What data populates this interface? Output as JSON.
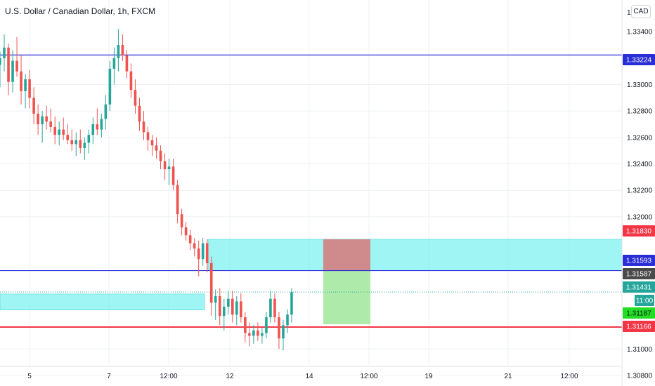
{
  "header": {
    "title": "U.S. Dollar / Canadian Dollar, 1h, FXCM"
  },
  "currency_button": {
    "label": "CAD"
  },
  "chart_data": {
    "type": "candlestick",
    "symbol": "USD/CAD",
    "interval": "1h",
    "source": "FXCM",
    "y_axis": {
      "range": [
        1.3072,
        1.3364
      ],
      "ticks": [
        1.33,
        1.328,
        1.326,
        1.324,
        1.322,
        1.32,
        1.31,
        1.308
      ],
      "tick_labels": [
        "1.33000",
        "1.32800",
        "1.32600",
        "1.32400",
        "1.32200",
        "1.32000",
        "1.31000",
        "1.30800"
      ],
      "partial_top_label": "1.3",
      "partial_second_label": "1.33400"
    },
    "x_axis": {
      "tick_labels": [
        "5",
        "7",
        "12:00",
        "12",
        "14",
        "12:00",
        "19",
        "21",
        "12:00"
      ]
    },
    "price_tags": [
      {
        "label": "1.33224",
        "value": 1.33224,
        "color": "#2a2ed6",
        "text_color": "#ffffff"
      },
      {
        "label": "1.31830",
        "value": 1.3183,
        "color": "#f23645",
        "text_color": "#ffffff"
      },
      {
        "label": "1.31593",
        "value": 1.31593,
        "color": "#2a2ed6",
        "text_color": "#ffffff"
      },
      {
        "label": "1.31587",
        "value": 1.31587,
        "color": "#4a4a4a",
        "text_color": "#ffffff"
      },
      {
        "label": "1.31431",
        "value": 1.31431,
        "color": "#26a69a",
        "text_color": "#ffffff"
      },
      {
        "label": "11:00",
        "value": 1.3132,
        "color": "#26a69a",
        "text_color": "#ffffff"
      },
      {
        "label": "1.31187",
        "value": 1.31187,
        "color": "#22dd22",
        "text_color": "#131722"
      },
      {
        "label": "1.31166",
        "value": 1.31166,
        "color": "#f23645",
        "text_color": "#ffffff"
      }
    ],
    "horizontal_lines": [
      {
        "name": "resistance",
        "value": 1.33224,
        "color": "#2a2ed6"
      },
      {
        "name": "entry",
        "value": 1.31593,
        "color": "#2a2ed6"
      },
      {
        "name": "support",
        "value": 1.31166,
        "color": "#f23645"
      }
    ],
    "current_price": {
      "value": 1.31431,
      "color": "#26a69a"
    },
    "zones": [
      {
        "name": "supply-zone",
        "from": 1.31593,
        "to": 1.3183,
        "start_time": "11:00 day 11",
        "color": "#7ff0f0"
      },
      {
        "name": "demand-zone",
        "from": 1.31295,
        "to": 1.31416,
        "color": "#7ff0f0"
      }
    ],
    "position": {
      "type": "short",
      "entry": 1.31593,
      "stop": 1.3183,
      "target": 1.31187,
      "profit_color": "#a5e8a0",
      "loss_color": "#d47f7f"
    },
    "colors": {
      "up": "#26a69a",
      "down": "#ef5350"
    },
    "grid": true,
    "candles": [
      [
        1.3315,
        1.3325,
        1.3298,
        1.332
      ],
      [
        1.332,
        1.3338,
        1.331,
        1.3328
      ],
      [
        1.3328,
        1.3331,
        1.3292,
        1.3302
      ],
      [
        1.3302,
        1.3326,
        1.3294,
        1.3318
      ],
      [
        1.3318,
        1.3336,
        1.3306,
        1.331
      ],
      [
        1.331,
        1.3322,
        1.3285,
        1.3295
      ],
      [
        1.3295,
        1.3308,
        1.3282,
        1.3304
      ],
      [
        1.3304,
        1.3311,
        1.3282,
        1.329
      ],
      [
        1.329,
        1.3298,
        1.327,
        1.3278
      ],
      [
        1.3278,
        1.3285,
        1.3262,
        1.327
      ],
      [
        1.327,
        1.328,
        1.3256,
        1.3276
      ],
      [
        1.3276,
        1.3284,
        1.3266,
        1.3272
      ],
      [
        1.3272,
        1.3282,
        1.3264,
        1.3268
      ],
      [
        1.3268,
        1.3276,
        1.3255,
        1.3262
      ],
      [
        1.3262,
        1.3272,
        1.3254,
        1.3266
      ],
      [
        1.3266,
        1.3275,
        1.3258,
        1.3262
      ],
      [
        1.3262,
        1.327,
        1.3255,
        1.3258
      ],
      [
        1.3258,
        1.3266,
        1.325,
        1.3255
      ],
      [
        1.3255,
        1.3264,
        1.3246,
        1.3258
      ],
      [
        1.3258,
        1.3266,
        1.3248,
        1.3252
      ],
      [
        1.3252,
        1.326,
        1.3243,
        1.3256
      ],
      [
        1.3256,
        1.3266,
        1.3248,
        1.3262
      ],
      [
        1.3262,
        1.3275,
        1.3255,
        1.327
      ],
      [
        1.327,
        1.3282,
        1.3262,
        1.3266
      ],
      [
        1.3266,
        1.3278,
        1.326,
        1.3274
      ],
      [
        1.3274,
        1.3292,
        1.3266,
        1.3285
      ],
      [
        1.3285,
        1.3318,
        1.328,
        1.3312
      ],
      [
        1.3312,
        1.3328,
        1.33,
        1.332
      ],
      [
        1.332,
        1.3342,
        1.331,
        1.333
      ],
      [
        1.333,
        1.3338,
        1.3318,
        1.3322
      ],
      [
        1.3322,
        1.3326,
        1.3305,
        1.331
      ],
      [
        1.331,
        1.3316,
        1.329,
        1.3296
      ],
      [
        1.3296,
        1.3304,
        1.3278,
        1.3284
      ],
      [
        1.3284,
        1.329,
        1.3265,
        1.3272
      ],
      [
        1.3272,
        1.328,
        1.3258,
        1.3264
      ],
      [
        1.3264,
        1.3268,
        1.325,
        1.3258
      ],
      [
        1.3258,
        1.3262,
        1.3246,
        1.3254
      ],
      [
        1.3254,
        1.326,
        1.3244,
        1.325
      ],
      [
        1.325,
        1.3254,
        1.3236,
        1.3242
      ],
      [
        1.3242,
        1.3248,
        1.3228,
        1.3236
      ],
      [
        1.3236,
        1.3244,
        1.3224,
        1.3238
      ],
      [
        1.3238,
        1.3244,
        1.322,
        1.3224
      ],
      [
        1.3224,
        1.3228,
        1.3195,
        1.3202
      ],
      [
        1.3202,
        1.3206,
        1.3186,
        1.3192
      ],
      [
        1.3192,
        1.3196,
        1.3182,
        1.3186
      ],
      [
        1.3186,
        1.319,
        1.3175,
        1.318
      ],
      [
        1.318,
        1.3184,
        1.317,
        1.3176
      ],
      [
        1.3176,
        1.3182,
        1.3155,
        1.3168
      ],
      [
        1.3168,
        1.3184,
        1.3163,
        1.318
      ],
      [
        1.318,
        1.3183,
        1.3158,
        1.3165
      ],
      [
        1.3165,
        1.317,
        1.3125,
        1.3135
      ],
      [
        1.3135,
        1.3145,
        1.3122,
        1.314
      ],
      [
        1.314,
        1.3146,
        1.3118,
        1.3125
      ],
      [
        1.3125,
        1.3138,
        1.3114,
        1.3132
      ],
      [
        1.3132,
        1.3144,
        1.3126,
        1.3138
      ],
      [
        1.3138,
        1.3144,
        1.312,
        1.3126
      ],
      [
        1.3126,
        1.314,
        1.3118,
        1.3136
      ],
      [
        1.3136,
        1.3142,
        1.312,
        1.3124
      ],
      [
        1.3124,
        1.3128,
        1.3105,
        1.3112
      ],
      [
        1.3112,
        1.312,
        1.3102,
        1.311
      ],
      [
        1.311,
        1.3118,
        1.3104,
        1.3114
      ],
      [
        1.3114,
        1.312,
        1.3106,
        1.311
      ],
      [
        1.311,
        1.3116,
        1.3104,
        1.3112
      ],
      [
        1.3112,
        1.3128,
        1.3108,
        1.3124
      ],
      [
        1.3124,
        1.3144,
        1.312,
        1.3138
      ],
      [
        1.3138,
        1.3142,
        1.312,
        1.3124
      ],
      [
        1.3124,
        1.3128,
        1.31,
        1.3108
      ],
      [
        1.3108,
        1.3122,
        1.3099,
        1.3118
      ],
      [
        1.3118,
        1.313,
        1.3112,
        1.3126
      ],
      [
        1.3126,
        1.3146,
        1.312,
        1.3143
      ]
    ]
  }
}
